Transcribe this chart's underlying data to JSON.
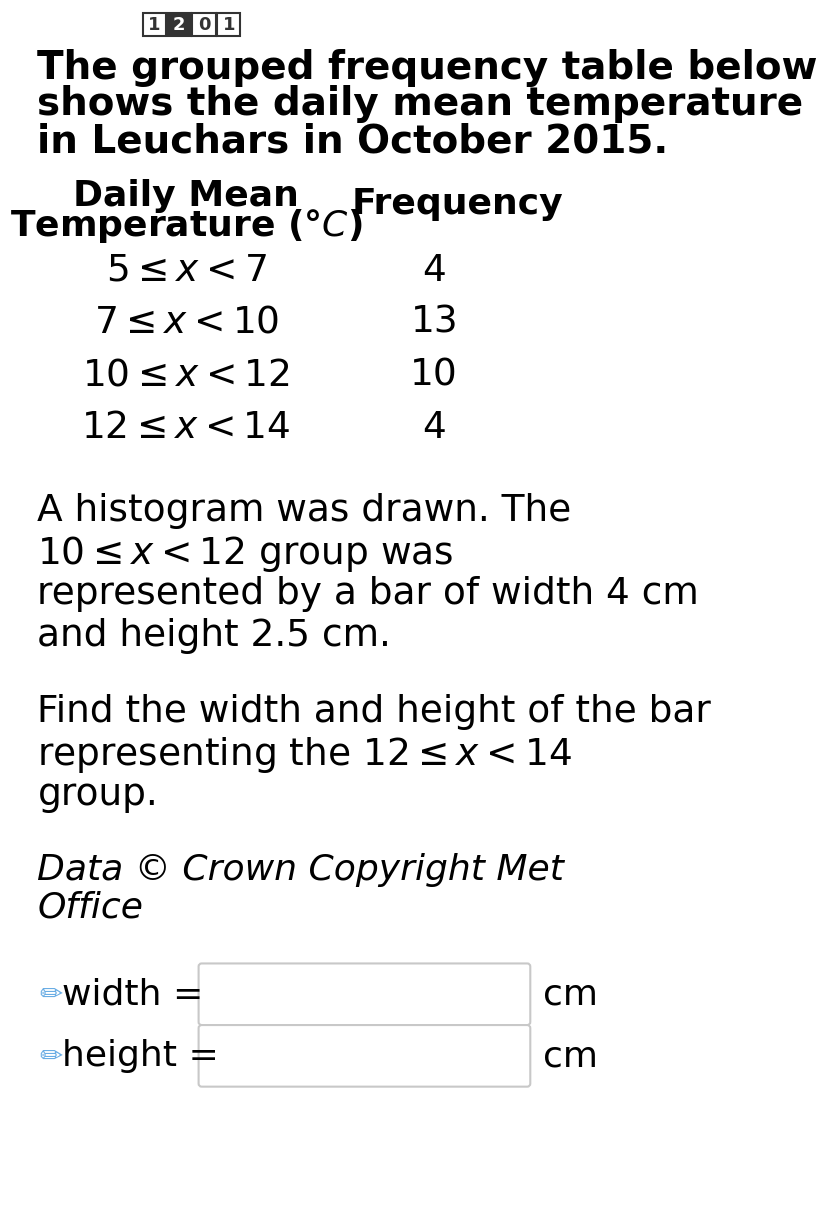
{
  "background_color": "#ffffff",
  "nav_numbers": [
    "1",
    "2",
    "0",
    "1"
  ],
  "intro_text": "The grouped frequency table below\nshows the daily mean temperature\nin Leuchars in October 2015.",
  "col1_header_line1": "Daily Mean",
  "col1_header_line2": "Temperature (°$\\mathit{C}$)",
  "col2_header": "Frequency",
  "row_intervals": [
    "$5 \\leq x < 7$",
    "$7 \\leq x < 10$",
    "$10 \\leq x < 12$",
    "$12 \\leq x < 14$"
  ],
  "row_freqs": [
    "4",
    "13",
    "10",
    "4"
  ],
  "hist_line1": "A histogram was drawn. The",
  "hist_line2": "$10 \\leq x < 12$ group was",
  "hist_line3": "represented by a bar of width 4 cm",
  "hist_line4": "and height 2.5 cm.",
  "question_line1": "Find the width and height of the bar",
  "question_line2": "representing the $12 \\leq x < 14$",
  "question_line3": "group.",
  "copyright_line1": "Data © Crown Copyright Met",
  "copyright_line2": "Office",
  "width_label": "width =",
  "height_label": "height =",
  "unit_label": "cm",
  "pencil_color": "#6aade4",
  "box_edge_color": "#c8c8c8",
  "box_fill_color": "#ffffff",
  "text_color": "#000000",
  "nav_box_dark": "#333333",
  "nav_box_light": "#ffffff"
}
